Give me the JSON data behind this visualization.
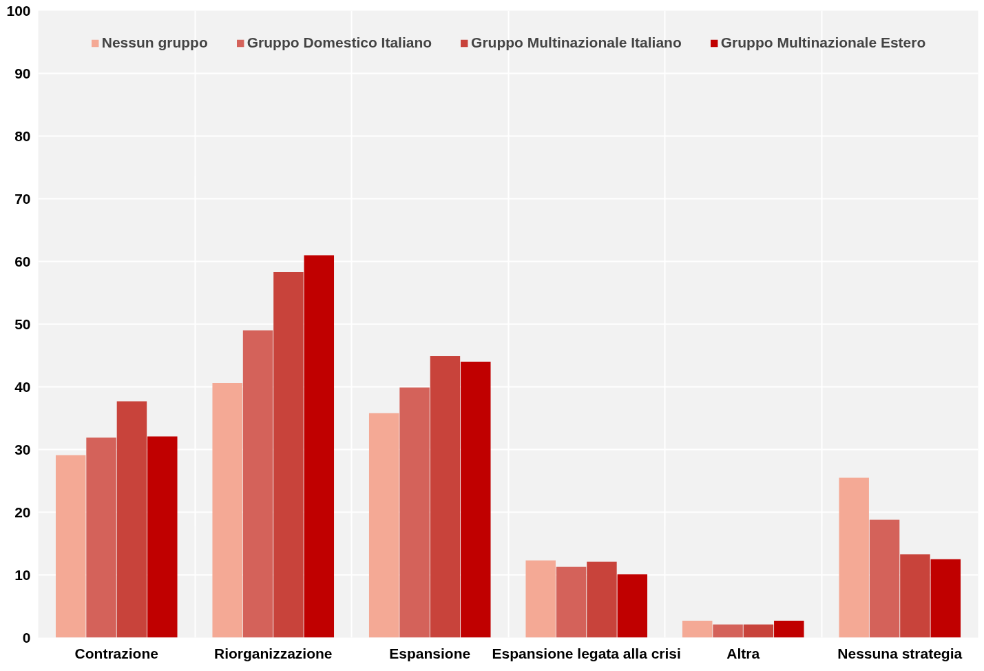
{
  "chart_data": {
    "type": "bar",
    "categories": [
      "Contrazione",
      "Riorganizzazione",
      "Espansione",
      "Espansione legata alla crisi",
      "Altra",
      "Nessuna strategia"
    ],
    "series": [
      {
        "name": "Nessun gruppo",
        "color": "#f4a995",
        "values": [
          29.1,
          40.6,
          35.8,
          12.3,
          2.7,
          25.5
        ]
      },
      {
        "name": "Gruppo Domestico Italiano",
        "color": "#d4625a",
        "values": [
          31.9,
          49.0,
          39.9,
          11.3,
          2.1,
          18.8
        ]
      },
      {
        "name": "Gruppo Multinazionale Italiano",
        "color": "#c8433b",
        "values": [
          37.7,
          58.3,
          44.9,
          12.1,
          2.1,
          13.3
        ]
      },
      {
        "name": "Gruppo Multinazionale Estero",
        "color": "#c00000",
        "values": [
          32.1,
          61.0,
          44.0,
          10.1,
          2.7,
          12.5
        ]
      }
    ],
    "ylim": [
      0,
      100
    ],
    "yticks": [
      0,
      10,
      20,
      30,
      40,
      50,
      60,
      70,
      80,
      90,
      100
    ],
    "grid": true,
    "legend": "top"
  }
}
